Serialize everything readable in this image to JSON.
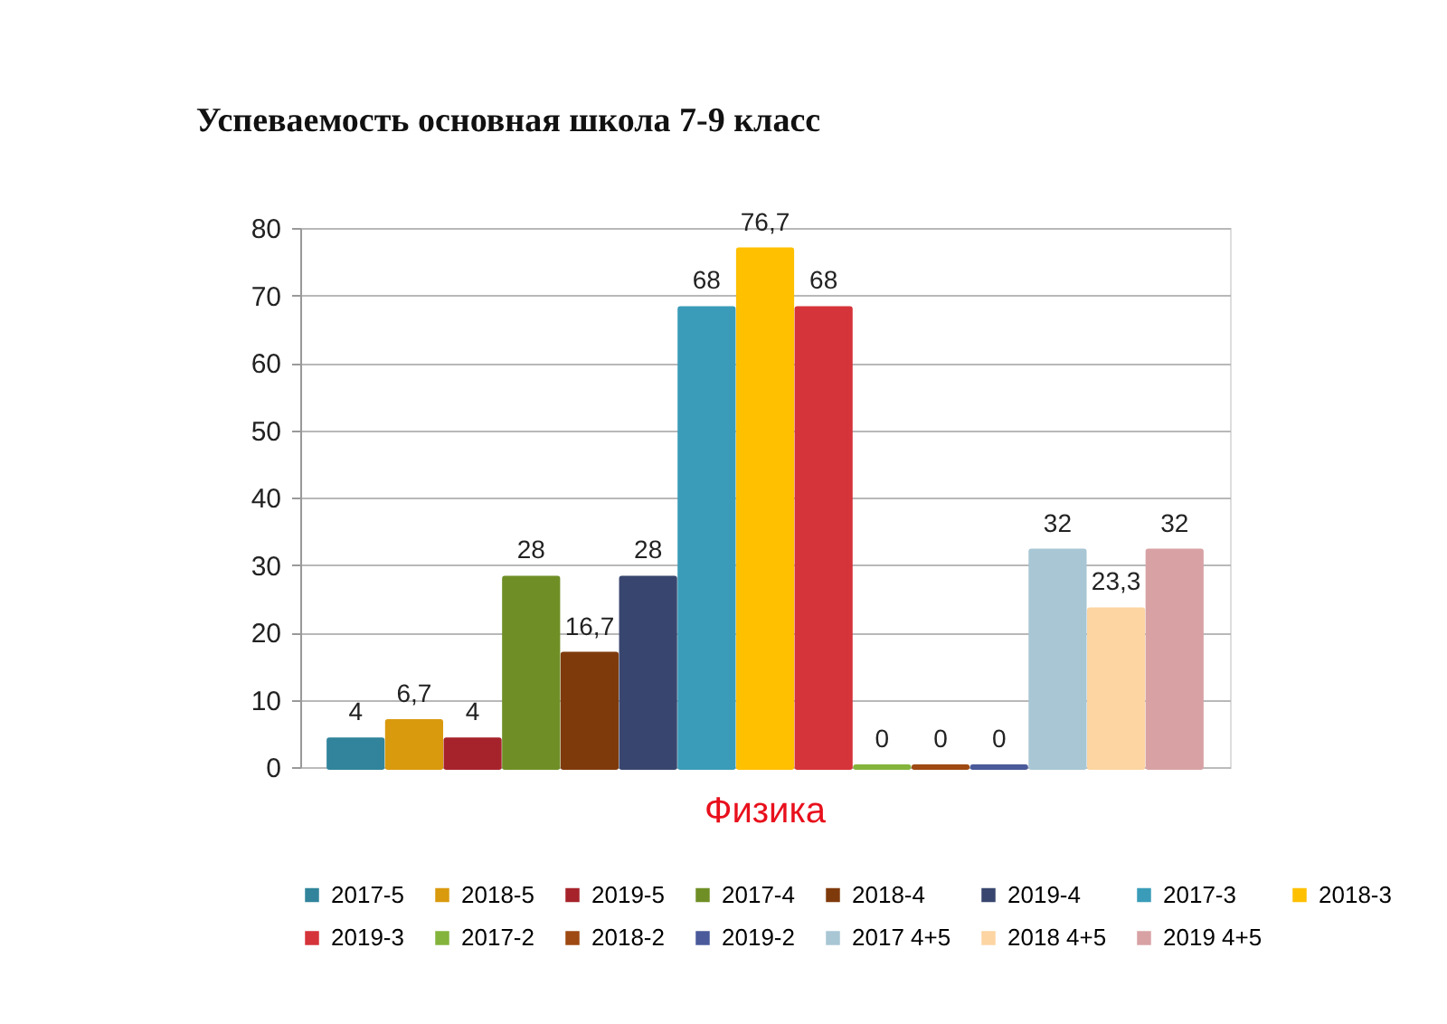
{
  "chart_data": {
    "type": "bar",
    "title": "Успеваемость основная школа           7-9 класс",
    "categories": [
      "Физика"
    ],
    "ylim": [
      0,
      80
    ],
    "yticks": [
      0,
      10,
      20,
      30,
      40,
      50,
      60,
      70,
      80
    ],
    "grid": "y",
    "legend": "bottom",
    "series": [
      {
        "name": "2017-5",
        "color": "#31849b",
        "values": [
          4
        ],
        "value_labels": [
          "4"
        ]
      },
      {
        "name": "2018-5",
        "color": "#d99a0e",
        "values": [
          6.7
        ],
        "value_labels": [
          "6,7"
        ]
      },
      {
        "name": "2019-5",
        "color": "#a6232b",
        "values": [
          4
        ],
        "value_labels": [
          "4"
        ]
      },
      {
        "name": "2017-4",
        "color": "#6f8f26",
        "values": [
          28
        ],
        "value_labels": [
          "28"
        ]
      },
      {
        "name": "2018-4",
        "color": "#7f3a0c",
        "values": [
          16.7
        ],
        "value_labels": [
          "16,7"
        ]
      },
      {
        "name": "2019-4",
        "color": "#38466f",
        "values": [
          28
        ],
        "value_labels": [
          "28"
        ]
      },
      {
        "name": "2017-3",
        "color": "#3a9cb8",
        "values": [
          68
        ],
        "value_labels": [
          "68"
        ]
      },
      {
        "name": "2018-3",
        "color": "#ffc000",
        "values": [
          76.7
        ],
        "value_labels": [
          "76,7"
        ]
      },
      {
        "name": "2019-3",
        "color": "#d5343a",
        "values": [
          68
        ],
        "value_labels": [
          "68"
        ]
      },
      {
        "name": "2017-2",
        "color": "#84b43c",
        "values": [
          0
        ],
        "value_labels": [
          "0"
        ]
      },
      {
        "name": "2018-2",
        "color": "#9e4a12",
        "values": [
          0
        ],
        "value_labels": [
          "0"
        ]
      },
      {
        "name": "2019-2",
        "color": "#4a5a9a",
        "values": [
          0
        ],
        "value_labels": [
          "0"
        ]
      },
      {
        "name": "2017 4+5",
        "color": "#a8c6d4",
        "values": [
          32
        ],
        "value_labels": [
          "32"
        ]
      },
      {
        "name": "2018 4+5",
        "color": "#fcd5a2",
        "values": [
          23.3
        ],
        "value_labels": [
          "23,3"
        ]
      },
      {
        "name": "2019 4+5",
        "color": "#d8a2a4",
        "values": [
          32
        ],
        "value_labels": [
          "32"
        ]
      }
    ]
  }
}
